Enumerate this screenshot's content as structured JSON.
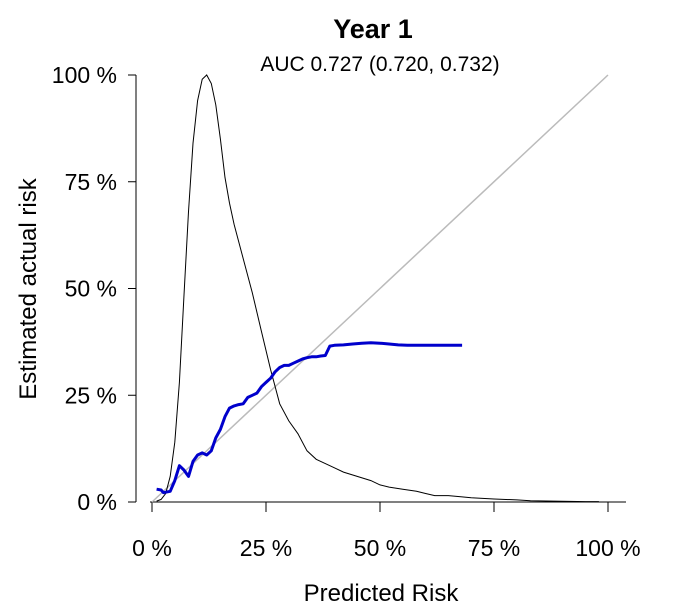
{
  "chart_data": {
    "type": "line",
    "title": "Year 1",
    "subtitle": "AUC 0.727 (0.720, 0.732)",
    "xlabel": "Predicted Risk",
    "ylabel": "Estimated actual risk",
    "xlim": [
      0,
      100
    ],
    "ylim": [
      0,
      100
    ],
    "x_ticks": [
      0,
      25,
      50,
      75,
      100
    ],
    "y_ticks": [
      0,
      25,
      50,
      75,
      100
    ],
    "x_tick_labels": [
      "0 %",
      "25 %",
      "50 %",
      "75 %",
      "100 %"
    ],
    "y_tick_labels": [
      "0 %",
      "25 %",
      "50 %",
      "75 %",
      "100 %"
    ],
    "grid": false,
    "legend": "none",
    "colors": {
      "calibration": "#0000cc",
      "reference": "#bbbbbb",
      "density": "#000000"
    },
    "series": [
      {
        "role": "reference",
        "x": [
          0,
          100
        ],
        "y": [
          0,
          100
        ]
      },
      {
        "role": "density",
        "x": [
          1,
          2,
          3,
          4,
          5,
          6,
          7,
          8,
          9,
          10,
          11,
          12,
          13,
          14,
          15,
          16,
          17,
          18,
          20,
          22,
          24,
          26,
          28,
          30,
          32,
          34,
          36,
          38,
          40,
          42,
          45,
          48,
          50,
          52,
          55,
          58,
          60,
          62,
          65,
          68,
          70,
          75,
          80,
          83,
          95,
          98
        ],
        "y": [
          0.2,
          0.6,
          2,
          6,
          14,
          28,
          48,
          68,
          84,
          94,
          99,
          100,
          98,
          93,
          85,
          76,
          70,
          65,
          57,
          49,
          40,
          31,
          23,
          19,
          16,
          12,
          10,
          9,
          8,
          7,
          6,
          5,
          4,
          3.5,
          3,
          2.5,
          2,
          1.5,
          1.5,
          1.2,
          1,
          0.7,
          0.5,
          0.3,
          0.1,
          0.1
        ]
      },
      {
        "role": "calibration",
        "x": [
          1,
          2,
          2.5,
          3,
          4,
          5,
          6,
          7,
          8,
          9,
          10,
          11,
          12,
          13,
          14,
          15,
          16,
          17,
          18,
          19,
          20,
          21,
          22,
          23,
          24,
          25,
          26,
          27,
          28,
          29,
          30,
          31,
          32,
          33,
          34,
          35,
          36,
          37,
          38,
          39,
          40,
          42,
          44,
          46,
          48,
          50,
          52,
          54,
          56,
          58,
          60,
          62,
          64,
          66,
          68
        ],
        "y": [
          3,
          2.8,
          2.2,
          2.3,
          2.5,
          5,
          8.5,
          7.5,
          6,
          9.5,
          11,
          11.5,
          11,
          12,
          15,
          17,
          20,
          22,
          22.5,
          22.8,
          23,
          24.5,
          25,
          25.5,
          27,
          28,
          29,
          30.5,
          31.5,
          32,
          32,
          32.5,
          33,
          33.5,
          33.8,
          34,
          34,
          34.2,
          34.3,
          36.5,
          36.7,
          36.8,
          37,
          37.2,
          37.3,
          37.2,
          37,
          36.8,
          36.7,
          36.7,
          36.7,
          36.7,
          36.7,
          36.7,
          36.7
        ]
      }
    ]
  }
}
